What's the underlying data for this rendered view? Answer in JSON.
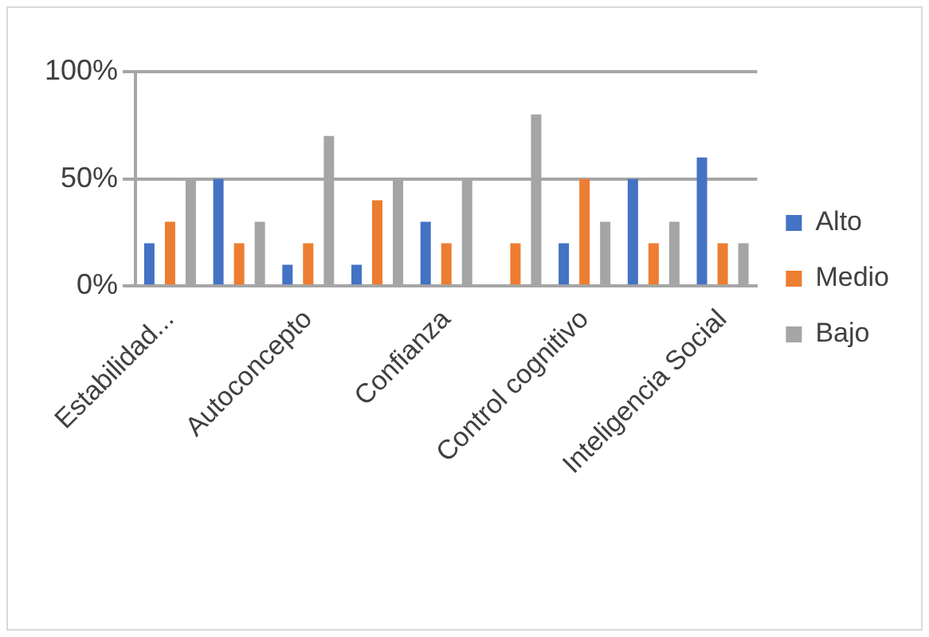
{
  "chart_data": {
    "type": "bar",
    "categories": [
      "Estabilidad...",
      null,
      "Autoconcepto",
      null,
      "Confianza",
      null,
      "Control cognitivo",
      null,
      "Inteligencia Social"
    ],
    "series": [
      {
        "name": "Alto",
        "color": "#4472c4",
        "values": [
          20,
          50,
          10,
          10,
          30,
          0,
          20,
          50,
          60
        ]
      },
      {
        "name": "Medio",
        "color": "#ed7d31",
        "values": [
          30,
          20,
          20,
          40,
          20,
          20,
          50,
          20,
          20
        ]
      },
      {
        "name": "Bajo",
        "color": "#a5a5a5",
        "values": [
          50,
          30,
          70,
          50,
          50,
          80,
          30,
          30,
          20
        ]
      }
    ],
    "ylim": [
      0,
      100
    ],
    "yticks": [
      {
        "value": 0,
        "label": "0%"
      },
      {
        "value": 50,
        "label": "50%"
      },
      {
        "value": 100,
        "label": "100%"
      }
    ],
    "grid": "y",
    "legend": "right"
  }
}
